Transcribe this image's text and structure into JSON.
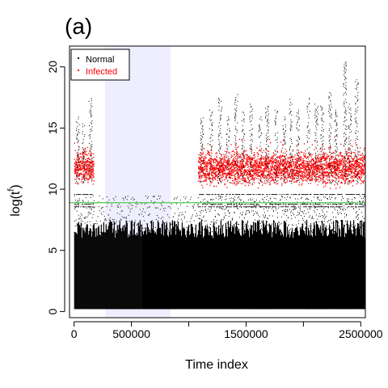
{
  "chart_data": {
    "type": "scatter",
    "panel_label": "(a)",
    "xlabel": "Time index",
    "ylabel": "log(t",
    "ylabel_superscript": "f",
    "ylabel_close": ")",
    "xlim": [
      -40000,
      2540000
    ],
    "ylim": [
      -0.5,
      21.7
    ],
    "xticks": [
      0,
      500000,
      1000000,
      1500000,
      2000000,
      2500000
    ],
    "xtick_labels": [
      "0",
      "500000",
      "",
      "1500000",
      "",
      "2500000"
    ],
    "yticks": [
      0,
      5,
      10,
      15,
      20
    ],
    "ytick_labels": [
      "0",
      "5",
      "10",
      "15",
      "20"
    ],
    "threshold_line": {
      "y": 8.9,
      "color": "#4ccc4c"
    },
    "shaded_region": {
      "x": [
        270000,
        840000
      ],
      "color": "#eeeeff"
    },
    "gap_region": {
      "x": [
        170000,
        1080000
      ]
    },
    "grid": false,
    "legend": {
      "position": "top-left",
      "items": [
        {
          "name": "Normal",
          "color": "#000000"
        },
        {
          "name": "Infected",
          "color": "#ff0000"
        }
      ]
    },
    "series": [
      {
        "name": "Normal",
        "color": "#000000",
        "description_ranges": {
          "base": [
            0.2,
            7.5
          ],
          "sparse_top": 9.5
        }
      },
      {
        "name": "Infected",
        "color": "#ff0000",
        "segments": [
          [
            0,
            170000
          ],
          [
            1080000,
            2540000
          ]
        ],
        "band": [
          10.0,
          13.5
        ]
      }
    ],
    "normal_spikes_x": [
      30000,
      80000,
      140000,
      1110000,
      1190000,
      1270000,
      1340000,
      1410000,
      1470000,
      1540000,
      1620000,
      1680000,
      1760000,
      1830000,
      1890000,
      1950000,
      2040000,
      2110000,
      2160000,
      2230000,
      2280000,
      2360000,
      2400000,
      2460000
    ],
    "normal_spikes_top": [
      16.0,
      15.5,
      17.5,
      16.0,
      16.5,
      17.5,
      16.0,
      18.0,
      16.5,
      17.0,
      16.0,
      17.0,
      16.5,
      16.0,
      17.5,
      16.5,
      17.5,
      17.0,
      17.0,
      18.0,
      16.5,
      20.5,
      17.0,
      19.0
    ],
    "tier_lines_y": [
      8.6,
      8.8,
      9.6
    ]
  }
}
